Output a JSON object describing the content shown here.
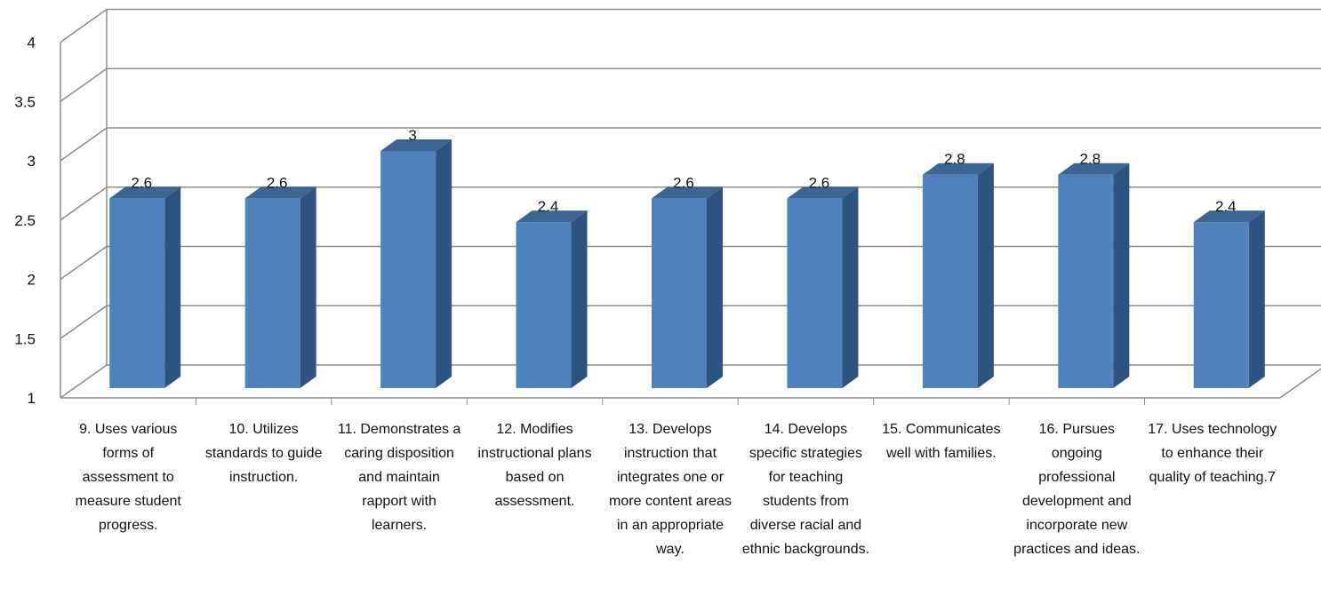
{
  "chart_data": {
    "type": "bar",
    "title": "",
    "xlabel": "",
    "ylabel": "",
    "ylim": [
      1,
      4
    ],
    "yticks": [
      "1",
      "1.5",
      "2",
      "2.5",
      "3",
      "3.5",
      "4"
    ],
    "grid": true,
    "three_d": true,
    "categories": [
      "9. Uses various forms of assessment to measure student progress.",
      "10. Utilizes standards to guide instruction.",
      "11. Demonstrates a caring disposition and maintain rapport with learners.",
      "12. Modifies instructional plans based on assessment.",
      "13. Develops instruction that integrates one or more content areas in an appropriate way.",
      "14. Develops specific strategies for teaching students from diverse racial and ethnic backgrounds.",
      "15. Communicates well with families.",
      "16. Pursues ongoing professional development and incorporate new practices and ideas.",
      "17. Uses technology to enhance their quality of teaching.7"
    ],
    "values": [
      2.6,
      2.6,
      3,
      2.4,
      2.6,
      2.6,
      2.8,
      2.8,
      2.4
    ],
    "data_labels": [
      "2.6",
      "2.6",
      "3",
      "2.4",
      "2.6",
      "2.6",
      "2.8",
      "2.8",
      "2.4"
    ],
    "colors": {
      "bar_front": "#4f81bd",
      "bar_side": "#2f5380",
      "bar_top": "#3b6592",
      "grid": "#8c8c8c"
    }
  }
}
